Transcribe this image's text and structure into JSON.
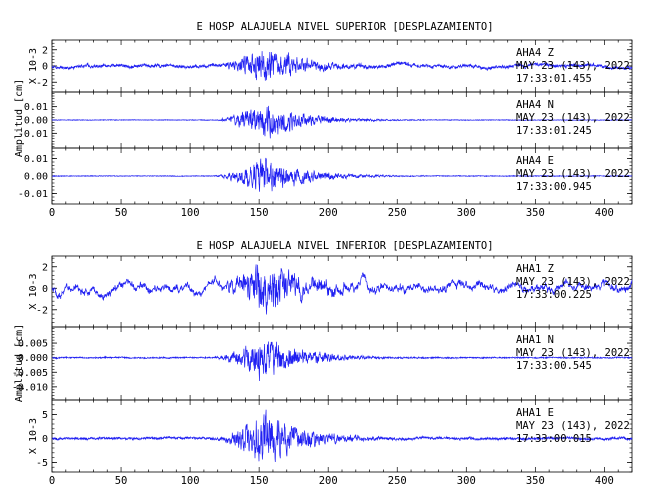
{
  "chart_data": [
    {
      "type": "line",
      "title": "E HOSP ALAJUELA NIVEL SUPERIOR [DESPLAZAMIENTO]",
      "ylabel": "Amplitud [cm]",
      "xlim": [
        0,
        420
      ],
      "xticks": [
        0,
        50,
        100,
        150,
        200,
        250,
        300,
        350,
        400
      ],
      "traces": [
        {
          "station": "AHA4",
          "component": "Z",
          "date": "MAY 23 (143), 2022",
          "time": "17:33:01.455",
          "scale": "X 10-3",
          "ylim": [
            -3.2,
            3.2
          ],
          "yticks": [
            -2,
            0,
            2
          ],
          "yticklabels": [
            "-2",
            "0",
            "2"
          ],
          "noise": 0.5,
          "peak": 3.0,
          "long": 0.35,
          "seed": 11
        },
        {
          "station": "AHA4",
          "component": "N",
          "date": "MAY 23 (143), 2022",
          "time": "17:33:01.245",
          "scale": "",
          "ylim": [
            -0.021,
            0.021
          ],
          "yticks": [
            -0.01,
            0.0,
            0.01
          ],
          "yticklabels": [
            "-0.01",
            "0.00",
            "0.01"
          ],
          "noise": 0.0007,
          "peak": 0.019,
          "long": 0.1,
          "seed": 23
        },
        {
          "station": "AHA4",
          "component": "E",
          "date": "MAY 23 (143), 2022",
          "time": "17:33:00.945",
          "scale": "",
          "ylim": [
            -0.016,
            0.016
          ],
          "yticks": [
            -0.01,
            0.0,
            0.01
          ],
          "yticklabels": [
            "-0.01",
            "0.00",
            "0.01"
          ],
          "noise": 0.0006,
          "peak": 0.015,
          "long": 0.1,
          "seed": 37
        }
      ]
    },
    {
      "type": "line",
      "title": "E HOSP ALAJUELA NIVEL INFERIOR [DESPLAZAMIENTO]",
      "ylabel": "Amplitud [cm]",
      "xlim": [
        0,
        420
      ],
      "xticks": [
        0,
        50,
        100,
        150,
        200,
        250,
        300,
        350,
        400
      ],
      "traces": [
        {
          "station": "AHA1",
          "component": "Z",
          "date": "MAY 23 (143), 2022",
          "time": "17:33:00.225",
          "scale": "X 10-3",
          "ylim": [
            -3.6,
            3.0
          ],
          "yticks": [
            -2,
            0,
            2
          ],
          "yticklabels": [
            "-2",
            "0",
            "2"
          ],
          "noise": 0.55,
          "peak": 3.3,
          "long": 0.9,
          "seed": 51
        },
        {
          "station": "AHA1",
          "component": "N",
          "date": "MAY 23 (143), 2022",
          "time": "17:33:00.545",
          "scale": "",
          "ylim": [
            -0.0145,
            0.0105
          ],
          "yticks": [
            -0.01,
            -0.005,
            0.0,
            0.005
          ],
          "yticklabels": [
            "-0.010",
            "-0.005",
            "0.000",
            "0.005"
          ],
          "noise": 0.0006,
          "peak": 0.011,
          "long": 0.15,
          "seed": 67
        },
        {
          "station": "AHA1",
          "component": "E",
          "date": "MAY 23 (143), 2022",
          "time": "17:33:00.015",
          "scale": "X 10-3",
          "ylim": [
            -7.0,
            8.0
          ],
          "yticks": [
            -5,
            0,
            5
          ],
          "yticklabels": [
            "-5",
            "0",
            "5"
          ],
          "noise": 0.7,
          "peak": 7.5,
          "long": 0.2,
          "seed": 79
        }
      ]
    }
  ]
}
